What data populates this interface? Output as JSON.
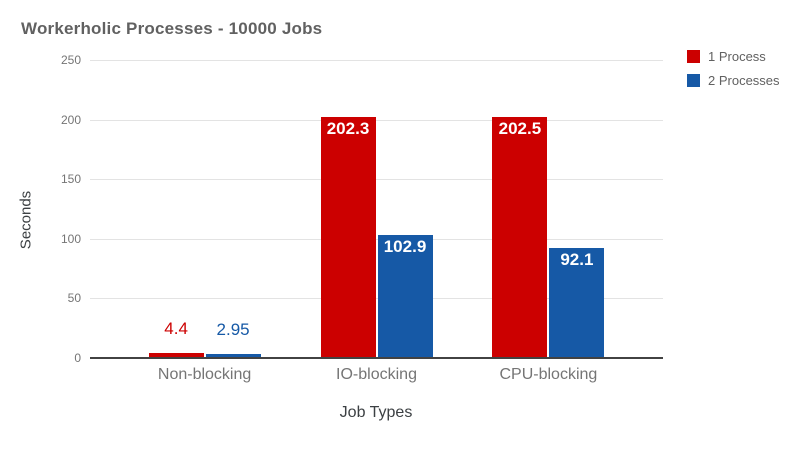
{
  "chart_data": {
    "type": "bar",
    "title": "Workerholic Processes - 10000 Jobs",
    "xlabel": "Job Types",
    "ylabel": "Seconds",
    "categories": [
      "Non-blocking",
      "IO-blocking",
      "CPU-blocking"
    ],
    "series": [
      {
        "name": "1 Process",
        "color": "#cc0000",
        "values": [
          4.4,
          202.3,
          202.5
        ]
      },
      {
        "name": "2 Processes",
        "color": "#1659a6",
        "values": [
          2.95,
          102.9,
          92.1
        ]
      }
    ],
    "yticks": [
      0,
      50,
      100,
      150,
      200,
      250
    ],
    "ylim": [
      0,
      250
    ],
    "grid": true,
    "legend_position": "right",
    "background_color": "#ffffff",
    "text_colors": {
      "title": "#616161",
      "axis_titles": "#3c4043",
      "tick_labels": "#757575"
    }
  }
}
